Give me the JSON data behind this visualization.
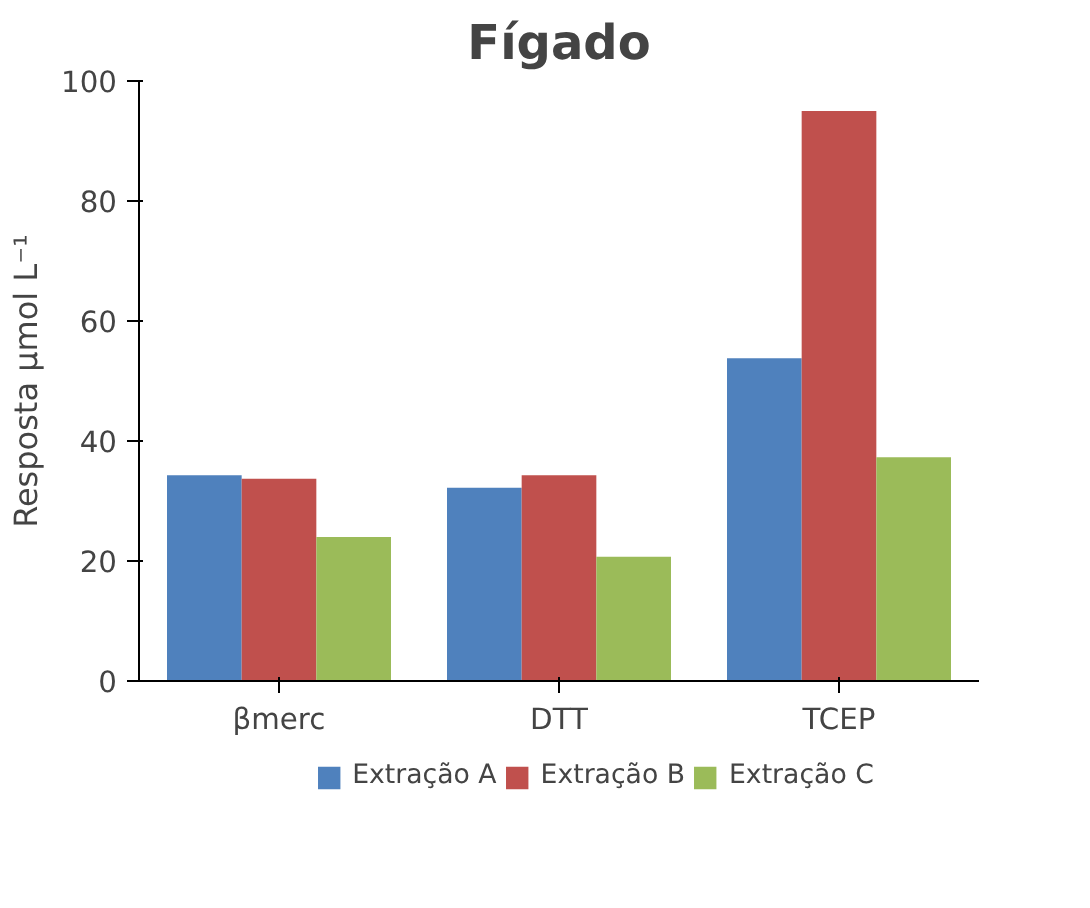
{
  "chart_data": {
    "type": "bar",
    "title": "Fígado",
    "ylabel": "Resposta µmol L⁻¹",
    "categories": [
      "βmerc",
      "DTT",
      "TCEP"
    ],
    "series": [
      {
        "name": "Extração A",
        "color": "#4f81bd",
        "values": [
          34.3,
          32.2,
          53.8
        ]
      },
      {
        "name": "Extração B",
        "color": "#c0504d",
        "values": [
          33.7,
          34.3,
          95
        ]
      },
      {
        "name": "Extração C",
        "color": "#9bbb59",
        "values": [
          24,
          20.7,
          37.3
        ]
      }
    ],
    "ylim": [
      0,
      100
    ],
    "yticks": [
      0,
      20,
      40,
      60,
      80,
      100
    ],
    "grid": false,
    "legend": "bottom"
  }
}
